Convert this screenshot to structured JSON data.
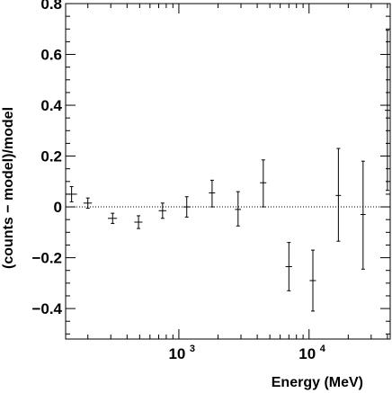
{
  "chart_data": {
    "type": "scatter",
    "title": "",
    "xlabel": "Energy (MeV)",
    "ylabel": "(counts − model)/model",
    "xscale": "log",
    "xlim": [
      135,
      42000
    ],
    "ylim": [
      -0.52,
      0.8
    ],
    "grid": false,
    "reference_line": {
      "y": 0,
      "style": "dotted"
    },
    "x_tick_labels": [
      {
        "value": 1000,
        "base": "10",
        "exponent": "3"
      },
      {
        "value": 10000,
        "base": "10",
        "exponent": "4"
      }
    ],
    "y_tick_labels": [
      "0.8",
      "0.6",
      "0.4",
      "0.2",
      "0",
      "−0.2",
      "−0.4"
    ],
    "series": [
      {
        "points": [
          {
            "x": 150,
            "x_lo": 135,
            "x_hi": 165,
            "y": 0.05,
            "y_lo": 0.02,
            "y_hi": 0.08
          },
          {
            "x": 200,
            "x_lo": 185,
            "x_hi": 215,
            "y": 0.015,
            "y_lo": -0.005,
            "y_hi": 0.035
          },
          {
            "x": 310,
            "x_lo": 285,
            "x_hi": 335,
            "y": -0.045,
            "y_lo": -0.065,
            "y_hi": -0.025
          },
          {
            "x": 490,
            "x_lo": 455,
            "x_hi": 525,
            "y": -0.06,
            "y_lo": -0.085,
            "y_hi": -0.035
          },
          {
            "x": 750,
            "x_lo": 700,
            "x_hi": 800,
            "y": -0.015,
            "y_lo": -0.045,
            "y_hi": 0.015
          },
          {
            "x": 1150,
            "x_lo": 1080,
            "x_hi": 1220,
            "y": 0.0,
            "y_lo": -0.04,
            "y_hi": 0.04
          },
          {
            "x": 1800,
            "x_lo": 1700,
            "x_hi": 1900,
            "y": 0.055,
            "y_lo": 0.0,
            "y_hi": 0.105
          },
          {
            "x": 2850,
            "x_lo": 2700,
            "x_hi": 3000,
            "y": -0.01,
            "y_lo": -0.075,
            "y_hi": 0.06
          },
          {
            "x": 4450,
            "x_lo": 4200,
            "x_hi": 4700,
            "y": 0.095,
            "y_lo": 0.0,
            "y_hi": 0.185
          },
          {
            "x": 7000,
            "x_lo": 6600,
            "x_hi": 7400,
            "y": -0.235,
            "y_lo": -0.33,
            "y_hi": -0.14
          },
          {
            "x": 10700,
            "x_lo": 10100,
            "x_hi": 11300,
            "y": -0.29,
            "y_lo": -0.41,
            "y_hi": -0.17
          },
          {
            "x": 16800,
            "x_lo": 16000,
            "x_hi": 17600,
            "y": 0.045,
            "y_lo": -0.135,
            "y_hi": 0.23
          },
          {
            "x": 26000,
            "x_lo": 24800,
            "x_hi": 27200,
            "y": -0.03,
            "y_lo": -0.245,
            "y_hi": 0.18
          },
          {
            "x": 40000,
            "x_lo": 38200,
            "x_hi": 41800,
            "y": 0.38,
            "y_lo": 0.065,
            "y_hi": 0.695
          }
        ]
      }
    ]
  }
}
